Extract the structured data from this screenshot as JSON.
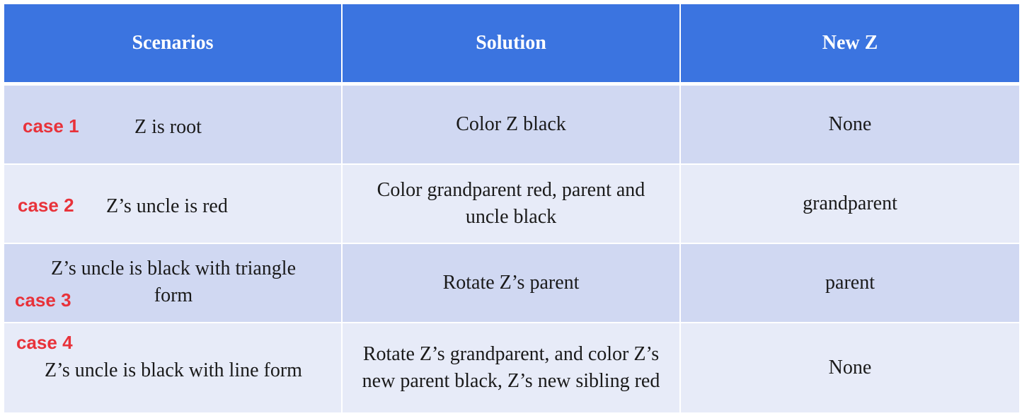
{
  "table": {
    "headers": [
      "Scenarios",
      "Solution",
      "New Z"
    ],
    "rows": [
      {
        "case_label": "case 1",
        "scenario": "Z is root",
        "solution": "Color Z black",
        "new_z": "None"
      },
      {
        "case_label": "case 2",
        "scenario": "Z’s uncle is red",
        "solution": "Color grandparent red, parent and uncle black",
        "new_z": "grandparent"
      },
      {
        "case_label": "case 3",
        "scenario_line1": "Z’s uncle is black with triangle",
        "scenario_line2": "form",
        "solution": "Rotate Z’s parent",
        "new_z": "parent"
      },
      {
        "case_label": "case 4",
        "scenario": "Z’s uncle is black with line form",
        "solution": "Rotate Z’s grandparent, and color Z’s new parent black, Z’s new sibling red",
        "new_z": "None"
      }
    ]
  },
  "colors": {
    "header_bg": "#3b74e0",
    "row_dark": "#d0d8f2",
    "row_light": "#e7ebf8",
    "case_label": "#e8323a"
  }
}
